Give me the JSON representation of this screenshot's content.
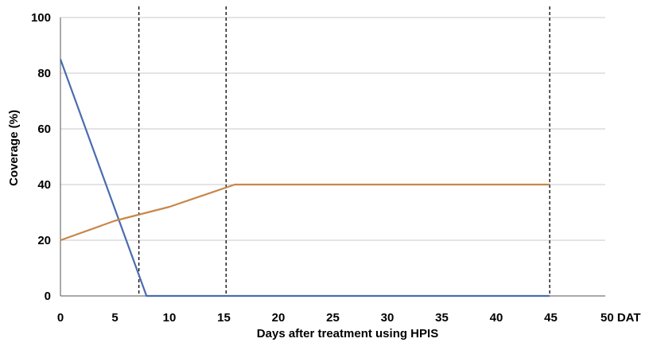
{
  "chart_data": {
    "type": "line",
    "title": "",
    "xlabel": "Days after treatment using HPIS",
    "ylabel": "Coverage (%)",
    "xlim": [
      0,
      50
    ],
    "ylim": [
      0,
      100
    ],
    "x_ticks": [
      0,
      5,
      10,
      15,
      20,
      25,
      30,
      35,
      40,
      45,
      50
    ],
    "x_tick_labels": [
      "0",
      "5",
      "10",
      "15",
      "20",
      "25",
      "30",
      "35",
      "40",
      "45",
      "50 DAT"
    ],
    "y_ticks": [
      0,
      20,
      40,
      60,
      80,
      100
    ],
    "y_tick_labels": [
      "0",
      "20",
      "40",
      "60",
      "80",
      "100"
    ],
    "grid": "horizontal",
    "vertical_dashed_lines": [
      7.2,
      15.2,
      44.9
    ],
    "series": [
      {
        "color": "#4a6cb0",
        "points": [
          [
            0,
            85
          ],
          [
            7.9,
            0
          ],
          [
            44.9,
            0
          ]
        ]
      },
      {
        "color": "#c8864a",
        "points": [
          [
            0,
            20
          ],
          [
            5,
            27
          ],
          [
            10,
            32
          ],
          [
            16,
            40
          ],
          [
            44.9,
            40
          ]
        ]
      }
    ]
  }
}
